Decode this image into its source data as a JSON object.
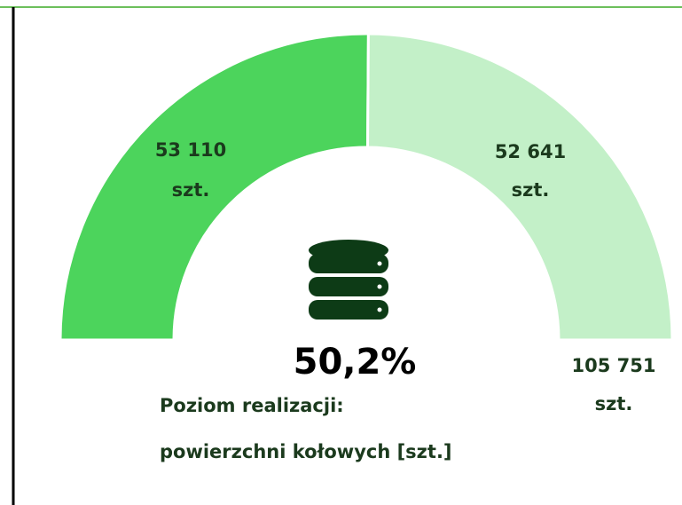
{
  "chart_data": {
    "type": "gauge",
    "values": [
      53110,
      52641
    ],
    "value_labels": [
      "53 110",
      "52 641"
    ],
    "colors": [
      "#4cd45c",
      "#c3f0c8"
    ],
    "unit": "szt.",
    "total": 105751,
    "total_label": "105 751",
    "percent": 50.2,
    "percent_label": "50,2%",
    "label_lines": [
      "Poziom realizacji:",
      "powierzchni kołowych [szt.]"
    ]
  }
}
